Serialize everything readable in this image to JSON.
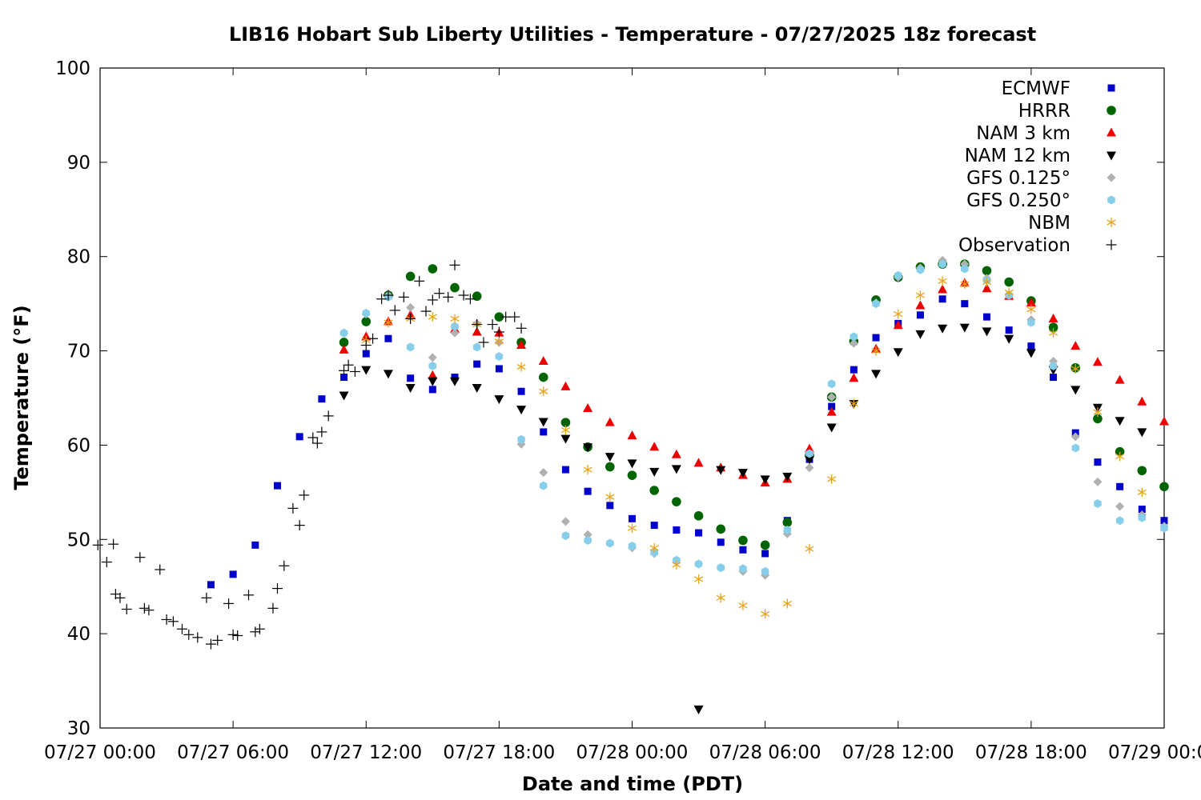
{
  "chart_data": {
    "type": "scatter",
    "title": "LIB16 Hobart Sub Liberty Utilities - Temperature - 07/27/2025 18z forecast",
    "xlabel": "Date and time (PDT)",
    "ylabel": "Temperature (°F)",
    "xlim": [
      0,
      48
    ],
    "ylim": [
      30,
      100
    ],
    "x_unit": "hours since 07/27 00:00 PDT",
    "yticks": [
      30,
      40,
      50,
      60,
      70,
      80,
      90,
      100
    ],
    "xticks": [
      {
        "value": 0,
        "label": "07/27 00:00"
      },
      {
        "value": 6,
        "label": "07/27 06:00"
      },
      {
        "value": 12,
        "label": "07/27 12:00"
      },
      {
        "value": 18,
        "label": "07/27 18:00"
      },
      {
        "value": 24,
        "label": "07/28 00:00"
      },
      {
        "value": 30,
        "label": "07/28 06:00"
      },
      {
        "value": 36,
        "label": "07/28 12:00"
      },
      {
        "value": 42,
        "label": "07/28 18:00"
      },
      {
        "value": 48,
        "label": "07/29 00:00"
      }
    ],
    "grid": false,
    "legend_position": "top-right",
    "series": [
      {
        "name": "ECMWF",
        "marker": "square",
        "color": "#0000cc",
        "x": [
          5,
          6,
          7,
          8,
          9,
          10,
          11,
          12,
          13,
          14,
          15,
          16,
          17,
          18,
          19,
          20,
          21,
          22,
          23,
          24,
          25,
          26,
          27,
          28,
          29,
          30,
          31,
          32,
          33,
          34,
          35,
          36,
          37,
          38,
          39,
          40,
          41,
          42,
          43,
          44,
          45,
          46,
          47,
          48
        ],
        "y": [
          45.2,
          46.3,
          49.4,
          55.7,
          60.9,
          64.9,
          67.2,
          69.7,
          71.3,
          67.1,
          65.9,
          67.2,
          68.6,
          68.1,
          65.7,
          61.4,
          57.4,
          55.1,
          53.6,
          52.2,
          51.5,
          51.0,
          50.7,
          49.7,
          48.9,
          48.5,
          52.0,
          58.5,
          64.1,
          68.0,
          71.4,
          72.9,
          73.8,
          75.5,
          75.0,
          73.6,
          72.2,
          70.5,
          67.2,
          61.3,
          58.2,
          55.6,
          53.2,
          52.0
        ]
      },
      {
        "name": "HRRR",
        "marker": "circle",
        "color": "#006400",
        "x": [
          11,
          12,
          13,
          14,
          15,
          16,
          17,
          18,
          19,
          20,
          21,
          22,
          23,
          24,
          25,
          26,
          27,
          28,
          29,
          30,
          31,
          32,
          33,
          34,
          35,
          36,
          37,
          38,
          39,
          40,
          41,
          42,
          43,
          44,
          45,
          46,
          47,
          48
        ],
        "y": [
          70.9,
          73.1,
          75.9,
          77.9,
          78.7,
          76.7,
          75.8,
          73.6,
          70.9,
          67.2,
          62.4,
          59.8,
          57.7,
          56.8,
          55.2,
          54.0,
          52.5,
          51.1,
          49.9,
          49.4,
          51.8,
          58.9,
          65.1,
          71.0,
          75.4,
          77.8,
          78.9,
          79.2,
          79.2,
          78.5,
          77.3,
          75.3,
          72.5,
          68.2,
          62.8,
          59.3,
          57.3,
          55.6
        ]
      },
      {
        "name": "NAM 3 km",
        "marker": "triangle-up",
        "color": "#ee0000",
        "x": [
          11,
          12,
          13,
          14,
          15,
          16,
          17,
          18,
          19,
          20,
          21,
          22,
          23,
          24,
          25,
          26,
          27,
          28,
          29,
          30,
          31,
          32,
          33,
          34,
          35,
          36,
          37,
          38,
          39,
          40,
          41,
          42,
          43,
          44,
          45,
          46,
          47,
          48
        ],
        "y": [
          70.1,
          71.5,
          73.1,
          73.8,
          67.4,
          72.3,
          72.0,
          71.9,
          70.6,
          68.9,
          66.2,
          63.9,
          62.4,
          61.0,
          59.8,
          59.0,
          58.1,
          57.6,
          56.8,
          56.0,
          56.4,
          59.6,
          63.5,
          67.1,
          70.2,
          72.7,
          74.8,
          76.5,
          77.2,
          76.6,
          75.8,
          75.1,
          73.4,
          70.5,
          68.8,
          66.9,
          64.6,
          62.5
        ]
      },
      {
        "name": "NAM 12 km",
        "marker": "triangle-down",
        "color": "#000000",
        "x": [
          11,
          12,
          13,
          14,
          15,
          16,
          17,
          18,
          19,
          20,
          21,
          22,
          23,
          24,
          25,
          26,
          27,
          28,
          29,
          30,
          31,
          32,
          33,
          34,
          35,
          36,
          37,
          38,
          39,
          40,
          41,
          42,
          43,
          44,
          45,
          46,
          47,
          48
        ],
        "y": [
          65.3,
          68.0,
          67.6,
          66.1,
          66.8,
          66.8,
          66.1,
          64.9,
          63.8,
          62.5,
          60.7,
          59.8,
          58.8,
          58.1,
          57.2,
          57.5,
          32.0,
          57.4,
          57.1,
          56.4,
          56.7,
          58.5,
          61.9,
          64.4,
          67.6,
          69.9,
          71.8,
          72.4,
          72.5,
          72.1,
          71.3,
          69.8,
          68.0,
          65.9,
          64.0,
          62.6,
          61.4,
          null
        ]
      },
      {
        "name": "GFS 0.125°",
        "marker": "diamond",
        "color": "#b0b0b0",
        "x": [
          11,
          12,
          13,
          14,
          15,
          16,
          17,
          18,
          19,
          20,
          21,
          22,
          23,
          24,
          25,
          26,
          27,
          28,
          29,
          30,
          31,
          32,
          33,
          34,
          35,
          36,
          37,
          38,
          39,
          40,
          41,
          42,
          43,
          44,
          45,
          46,
          47,
          48
        ],
        "y": [
          71.9,
          73.9,
          75.9,
          74.6,
          69.3,
          71.9,
          72.9,
          70.9,
          60.1,
          57.1,
          51.9,
          50.5,
          49.6,
          49.1,
          48.5,
          47.8,
          47.4,
          47.0,
          46.6,
          46.2,
          50.6,
          57.6,
          65.1,
          70.8,
          75.1,
          77.8,
          78.8,
          79.6,
          79.2,
          77.7,
          75.9,
          73.3,
          68.9,
          60.9,
          56.1,
          53.5,
          52.6,
          51.4
        ]
      },
      {
        "name": "GFS 0.250°",
        "marker": "hexagon",
        "color": "#87ceeb",
        "x": [
          11,
          12,
          13,
          14,
          15,
          16,
          17,
          18,
          19,
          20,
          21,
          22,
          23,
          24,
          25,
          26,
          27,
          28,
          29,
          30,
          31,
          32,
          33,
          34,
          35,
          36,
          37,
          38,
          39,
          40,
          41,
          42,
          43,
          44,
          45,
          46,
          47,
          48
        ],
        "y": [
          71.9,
          74.0,
          75.7,
          70.4,
          68.4,
          72.6,
          70.4,
          69.4,
          60.6,
          55.7,
          50.4,
          49.9,
          49.6,
          49.3,
          48.6,
          47.8,
          47.4,
          47.0,
          46.9,
          46.6,
          51.0,
          59.1,
          66.5,
          71.5,
          75.0,
          78.0,
          78.6,
          79.2,
          78.7,
          77.5,
          75.9,
          73.0,
          68.4,
          59.7,
          53.8,
          52.0,
          52.3,
          51.2
        ]
      },
      {
        "name": "NBM",
        "marker": "asterisk",
        "color": "#e8a317",
        "x": [
          12,
          13,
          14,
          15,
          16,
          17,
          18,
          19,
          20,
          21,
          22,
          23,
          24,
          25,
          26,
          27,
          28,
          29,
          30,
          31,
          32,
          33,
          34,
          35,
          36,
          37,
          38,
          39,
          40,
          41,
          42,
          43,
          44,
          45,
          46,
          47
        ],
        "y": [
          71.1,
          73.0,
          73.4,
          73.6,
          73.4,
          72.8,
          71.0,
          68.3,
          65.7,
          61.6,
          57.4,
          54.5,
          51.2,
          49.1,
          47.3,
          45.8,
          43.8,
          43.0,
          42.1,
          43.2,
          49.0,
          56.4,
          64.4,
          70.0,
          73.9,
          75.9,
          77.4,
          77.1,
          77.3,
          76.2,
          74.4,
          71.9,
          68.1,
          63.5,
          58.8,
          55.0
        ]
      },
      {
        "name": "Observation",
        "marker": "plus",
        "color": "#000000",
        "x": [
          -0.1,
          0.3,
          0.6,
          0.7,
          0.9,
          1.2,
          1.8,
          2.0,
          2.2,
          2.7,
          3.0,
          3.3,
          3.7,
          4.0,
          4.4,
          4.8,
          5.0,
          5.3,
          5.8,
          6.0,
          6.2,
          6.7,
          7.0,
          7.2,
          7.8,
          8.0,
          8.3,
          8.7,
          9.0,
          9.2,
          9.6,
          9.8,
          10.0,
          10.3,
          11.0,
          11.2,
          11.5,
          12.0,
          12.3,
          12.7,
          13.0,
          13.3,
          13.7,
          14.0,
          14.4,
          14.7,
          15.0,
          15.3,
          15.7,
          16.0,
          16.4,
          16.7,
          17.0,
          17.3,
          17.7,
          18.0,
          18.3,
          18.7,
          19.0
        ],
        "y": [
          49.4,
          47.6,
          49.5,
          44.2,
          43.8,
          42.6,
          48.1,
          42.7,
          42.5,
          46.8,
          41.5,
          41.3,
          40.5,
          39.9,
          39.6,
          43.8,
          38.9,
          39.3,
          43.2,
          39.9,
          39.8,
          44.1,
          40.2,
          40.5,
          42.7,
          44.8,
          47.2,
          53.3,
          51.5,
          54.7,
          60.8,
          60.2,
          61.4,
          63.1,
          67.9,
          68.5,
          67.8,
          70.6,
          71.3,
          75.5,
          75.9,
          74.3,
          75.7,
          73.4,
          77.4,
          74.2,
          75.4,
          76.1,
          75.7,
          79.1,
          75.9,
          75.5,
          72.8,
          70.9,
          72.8,
          72.0,
          73.6,
          73.6,
          72.4
        ]
      }
    ]
  }
}
